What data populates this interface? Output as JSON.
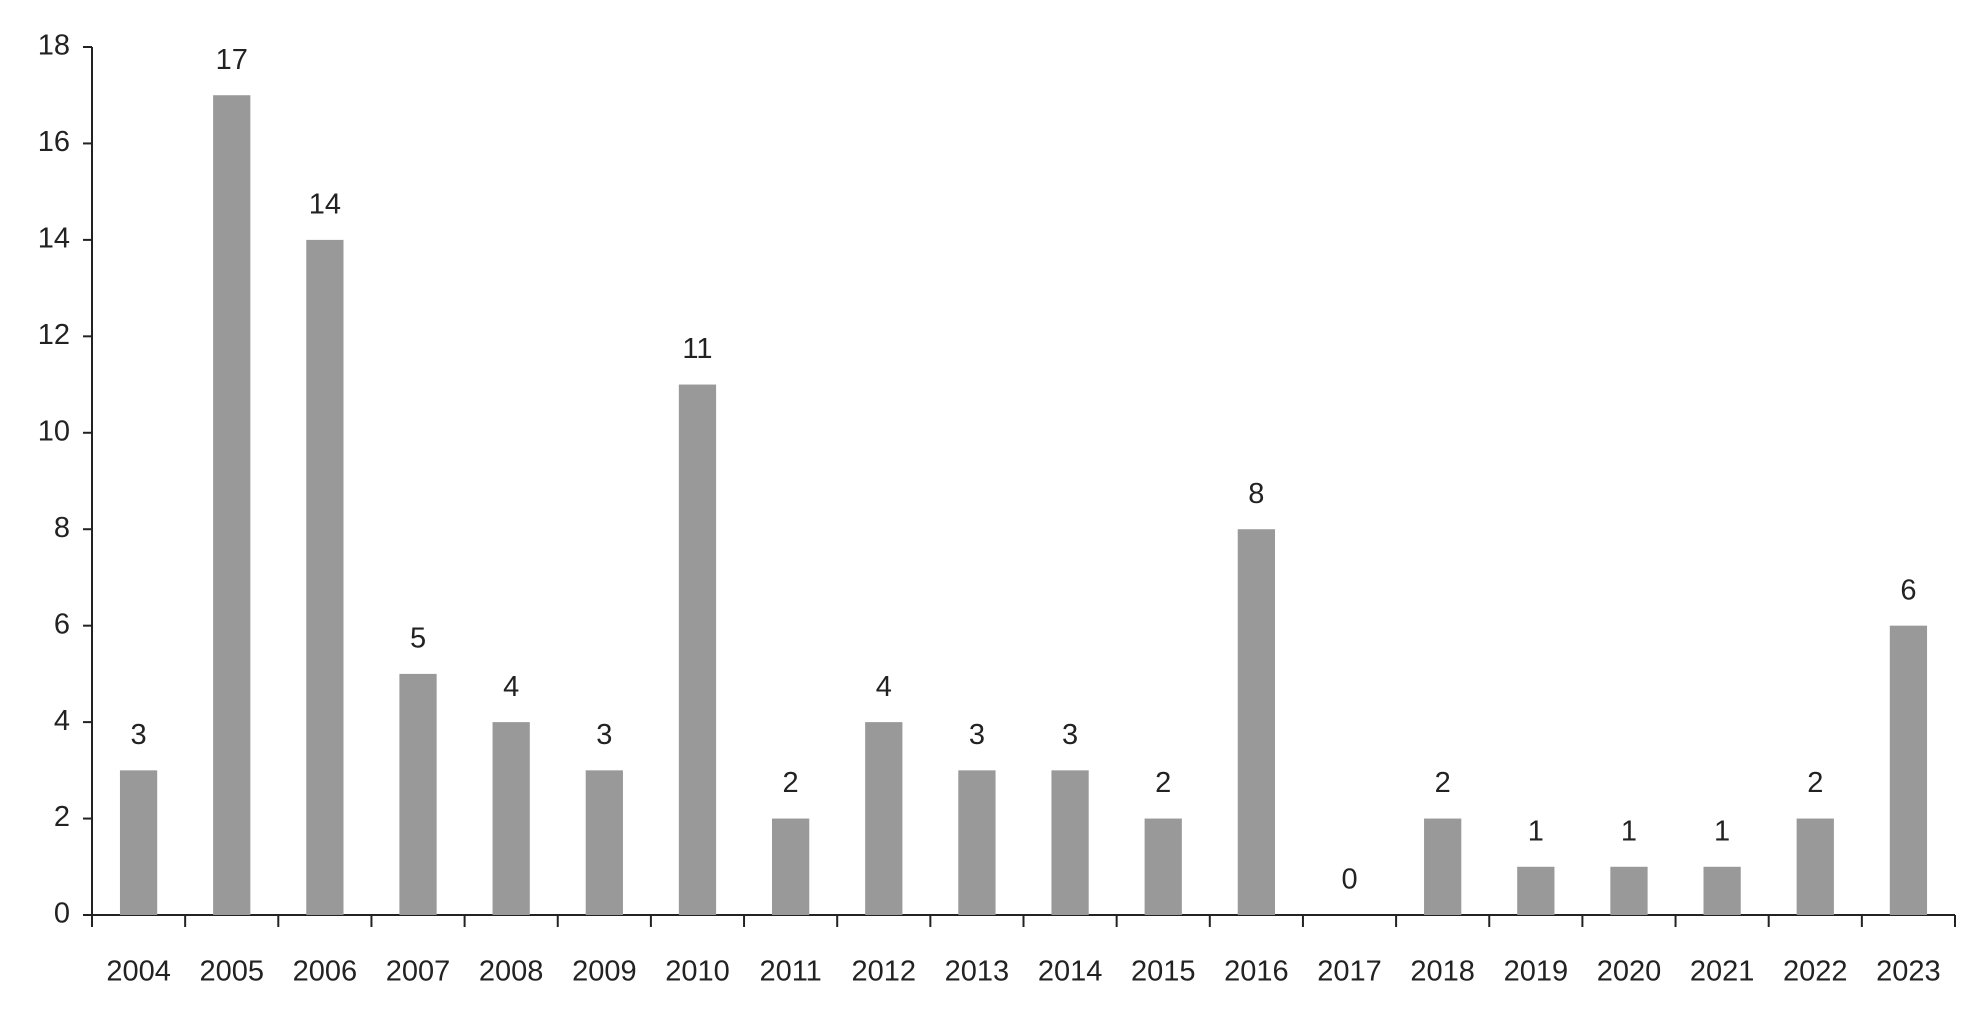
{
  "chart_data": {
    "type": "bar",
    "categories": [
      "2004",
      "2005",
      "2006",
      "2007",
      "2008",
      "2009",
      "2010",
      "2011",
      "2012",
      "2013",
      "2014",
      "2015",
      "2016",
      "2017",
      "2018",
      "2019",
      "2020",
      "2021",
      "2022",
      "2023"
    ],
    "values": [
      3,
      17,
      14,
      5,
      4,
      3,
      11,
      2,
      4,
      3,
      3,
      2,
      8,
      0,
      2,
      1,
      1,
      1,
      2,
      6
    ],
    "color": "#9a9999",
    "ylim": [
      0,
      18
    ],
    "yticks": [
      0,
      2,
      4,
      6,
      8,
      10,
      12,
      14,
      16,
      18
    ],
    "grid": false
  }
}
